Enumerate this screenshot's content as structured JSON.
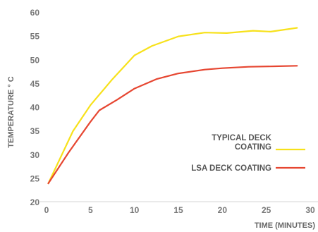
{
  "chart_data": {
    "type": "line",
    "title": "",
    "xlabel": "TIME (MINUTES)",
    "ylabel": "TEMPERATURE ° C",
    "xlim": [
      0,
      30
    ],
    "ylim": [
      20,
      60
    ],
    "xticks": [
      "0",
      "5",
      "10",
      "15",
      "20",
      "25",
      "30"
    ],
    "yticks": [
      "20",
      "25",
      "30",
      "35",
      "40",
      "45",
      "50",
      "55",
      "60"
    ],
    "grid": false,
    "legend_position": "right",
    "series": [
      {
        "name_lines": [
          "TYPICAL DECK",
          "COATING"
        ],
        "color": "#f7e11b",
        "points": [
          [
            0.2,
            24
          ],
          [
            3,
            35
          ],
          [
            5,
            40.5
          ],
          [
            7.5,
            46
          ],
          [
            10,
            51
          ],
          [
            12,
            53
          ],
          [
            15,
            55
          ],
          [
            18,
            55.8
          ],
          [
            20.5,
            55.7
          ],
          [
            23.5,
            56.2
          ],
          [
            25.5,
            56
          ],
          [
            28.5,
            56.8
          ]
        ]
      },
      {
        "name_lines": [
          "LSA DECK COATING"
        ],
        "color": "#e64631",
        "points": [
          [
            0.2,
            24
          ],
          [
            2.5,
            30.5
          ],
          [
            5,
            37
          ],
          [
            6,
            39.4
          ],
          [
            8,
            41.6
          ],
          [
            10,
            44
          ],
          [
            12.5,
            46
          ],
          [
            15,
            47.2
          ],
          [
            18,
            48
          ],
          [
            20,
            48.3
          ],
          [
            23,
            48.6
          ],
          [
            26,
            48.7
          ],
          [
            28.5,
            48.8
          ]
        ]
      }
    ]
  }
}
